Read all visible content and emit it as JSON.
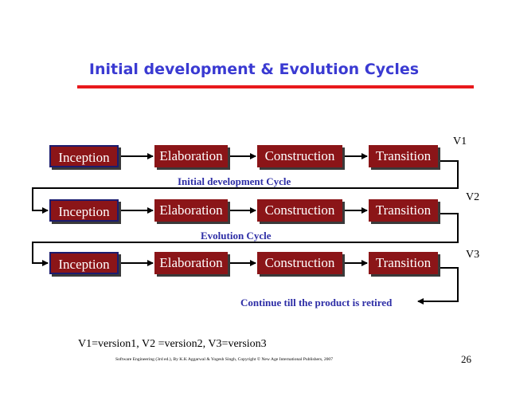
{
  "title": "Initial development & Evolution Cycles",
  "rows": [
    {
      "version": "V1",
      "phases": [
        "Inception",
        "Elaboration",
        "Construction",
        "Transition"
      ],
      "cycle_label": "Initial development Cycle"
    },
    {
      "version": "V2",
      "phases": [
        "Inception",
        "Elaboration",
        "Construction",
        "Transition"
      ],
      "cycle_label": "Evolution Cycle"
    },
    {
      "version": "V3",
      "phases": [
        "Inception",
        "Elaboration",
        "Construction",
        "Transition"
      ],
      "cycle_label": "Continue till the product is retired"
    }
  ],
  "legend": "V1=version1, V2 =version2, V3=version3",
  "copyright": "Software Engineering (3rd ed.), By K.K Aggarwal & Yogesh Singh, Copyright © New Age International Publishers, 2007",
  "page_number": "26",
  "colors": {
    "title": "#3a3ad2",
    "rule": "#e8191c",
    "box": "#8b1518",
    "cycle_label": "#2e2ea6"
  }
}
